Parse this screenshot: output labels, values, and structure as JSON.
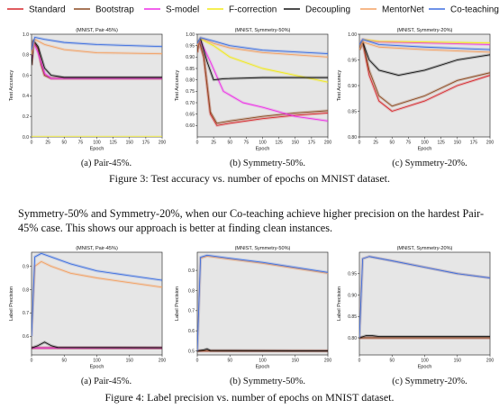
{
  "legend": [
    {
      "name": "Standard",
      "color": "#d6262b"
    },
    {
      "name": "Bootstrap",
      "color": "#8c4a22"
    },
    {
      "name": "S-model",
      "color": "#ee2ee6"
    },
    {
      "name": "F-correction",
      "color": "#f2ea1a"
    },
    {
      "name": "Decoupling",
      "color": "#111111"
    },
    {
      "name": "MentorNet",
      "color": "#f3a062"
    },
    {
      "name": "Co-teaching",
      "color": "#3d6fe0"
    }
  ],
  "figure3": {
    "caption": "Figure 3: Test accuracy vs. number of epochs on MNIST dataset.",
    "subcaptions": [
      "(a) Pair-45%.",
      "(b) Symmetry-50%.",
      "(c) Symmetry-20%."
    ]
  },
  "paragraph": "Symmetry-50% and Symmetry-20%, when our Co-teaching achieve higher precision on the hardest Pair-45% case. This shows our approach is better at finding clean instances.",
  "figure4": {
    "caption": "Figure 4: Label precision vs. number of epochs on MNIST dataset.",
    "subcaptions": [
      "(a) Pair-45%.",
      "(b) Symmetry-50%.",
      "(c) Symmetry-20%."
    ]
  },
  "chart_data": [
    {
      "type": "line",
      "title": "(MNIST, Pair-45%)",
      "xlabel": "Epoch",
      "ylabel": "Test Accuracy",
      "xlim": [
        0,
        200
      ],
      "ylim": [
        0.0,
        1.0
      ],
      "xticks": [
        0,
        25,
        50,
        75,
        100,
        125,
        150,
        175,
        200
      ],
      "yticks": [
        0.0,
        0.2,
        0.4,
        0.6,
        0.8,
        1.0
      ],
      "series": [
        {
          "name": "Standard",
          "x": [
            0,
            3,
            10,
            15,
            20,
            30,
            200
          ],
          "y": [
            0.7,
            0.93,
            0.86,
            0.7,
            0.6,
            0.57,
            0.57
          ]
        },
        {
          "name": "Bootstrap",
          "x": [
            0,
            3,
            10,
            15,
            20,
            30,
            200
          ],
          "y": [
            0.7,
            0.92,
            0.86,
            0.7,
            0.6,
            0.57,
            0.57
          ]
        },
        {
          "name": "S-model",
          "x": [
            0,
            3,
            10,
            20,
            30,
            200
          ],
          "y": [
            0.75,
            0.92,
            0.82,
            0.62,
            0.57,
            0.57
          ]
        },
        {
          "name": "F-correction",
          "x": [
            0,
            200
          ],
          "y": [
            0.0,
            0.0
          ]
        },
        {
          "name": "Decoupling",
          "x": [
            0,
            3,
            10,
            20,
            30,
            50,
            200
          ],
          "y": [
            0.7,
            0.94,
            0.88,
            0.67,
            0.6,
            0.58,
            0.58
          ]
        },
        {
          "name": "MentorNet",
          "x": [
            0,
            5,
            20,
            50,
            100,
            200
          ],
          "y": [
            0.8,
            0.95,
            0.9,
            0.85,
            0.82,
            0.81
          ]
        },
        {
          "name": "Co-teaching",
          "x": [
            0,
            5,
            20,
            50,
            100,
            200
          ],
          "y": [
            0.85,
            0.97,
            0.95,
            0.92,
            0.9,
            0.88
          ]
        }
      ]
    },
    {
      "type": "line",
      "title": "(MNIST, Symmetry-50%)",
      "xlabel": "Epoch",
      "ylabel": "Test Accuracy",
      "xlim": [
        0,
        200
      ],
      "ylim": [
        0.55,
        1.0
      ],
      "xticks": [
        0,
        25,
        50,
        75,
        100,
        125,
        150,
        175,
        200
      ],
      "yticks": [
        0.6,
        0.65,
        0.7,
        0.75,
        0.8,
        0.85,
        0.9,
        0.95,
        1.0
      ],
      "series": [
        {
          "name": "Standard",
          "x": [
            0,
            3,
            10,
            20,
            30,
            50,
            100,
            150,
            200
          ],
          "y": [
            0.92,
            0.97,
            0.9,
            0.65,
            0.6,
            0.61,
            0.63,
            0.645,
            0.655
          ]
        },
        {
          "name": "Bootstrap",
          "x": [
            0,
            3,
            10,
            20,
            30,
            50,
            100,
            150,
            200
          ],
          "y": [
            0.92,
            0.97,
            0.9,
            0.66,
            0.61,
            0.62,
            0.64,
            0.655,
            0.665
          ]
        },
        {
          "name": "S-model",
          "x": [
            0,
            5,
            20,
            40,
            70,
            100,
            150,
            200
          ],
          "y": [
            0.95,
            0.97,
            0.88,
            0.75,
            0.7,
            0.68,
            0.64,
            0.62
          ]
        },
        {
          "name": "F-correction",
          "x": [
            0,
            5,
            25,
            50,
            100,
            150,
            200
          ],
          "y": [
            0.95,
            0.98,
            0.95,
            0.9,
            0.85,
            0.82,
            0.79
          ]
        },
        {
          "name": "Decoupling",
          "x": [
            0,
            5,
            15,
            25,
            40,
            100,
            200
          ],
          "y": [
            0.95,
            0.98,
            0.88,
            0.8,
            0.805,
            0.81,
            0.81
          ]
        },
        {
          "name": "MentorNet",
          "x": [
            0,
            5,
            25,
            50,
            100,
            200
          ],
          "y": [
            0.95,
            0.985,
            0.96,
            0.94,
            0.92,
            0.9
          ]
        },
        {
          "name": "Co-teaching",
          "x": [
            0,
            5,
            25,
            50,
            100,
            200
          ],
          "y": [
            0.96,
            0.985,
            0.97,
            0.95,
            0.93,
            0.915
          ]
        }
      ]
    },
    {
      "type": "line",
      "title": "(MNIST, Symmetry-20%)",
      "xlabel": "Epoch",
      "ylabel": "Test Accuracy",
      "xlim": [
        0,
        200
      ],
      "ylim": [
        0.8,
        1.0
      ],
      "xticks": [
        0,
        25,
        50,
        75,
        100,
        125,
        150,
        175,
        200
      ],
      "yticks": [
        0.8,
        0.85,
        0.9,
        0.95,
        1.0
      ],
      "series": [
        {
          "name": "Standard",
          "x": [
            0,
            5,
            15,
            30,
            50,
            100,
            150,
            200
          ],
          "y": [
            0.97,
            0.985,
            0.92,
            0.87,
            0.85,
            0.87,
            0.9,
            0.92
          ]
        },
        {
          "name": "Bootstrap",
          "x": [
            0,
            5,
            15,
            30,
            50,
            100,
            150,
            200
          ],
          "y": [
            0.97,
            0.985,
            0.93,
            0.88,
            0.86,
            0.88,
            0.91,
            0.925
          ]
        },
        {
          "name": "S-model",
          "x": [
            0,
            5,
            30,
            100,
            200
          ],
          "y": [
            0.98,
            0.99,
            0.985,
            0.983,
            0.98
          ]
        },
        {
          "name": "F-correction",
          "x": [
            0,
            5,
            30,
            100,
            200
          ],
          "y": [
            0.98,
            0.99,
            0.986,
            0.985,
            0.983
          ]
        },
        {
          "name": "Decoupling",
          "x": [
            0,
            5,
            15,
            30,
            60,
            100,
            150,
            200
          ],
          "y": [
            0.97,
            0.985,
            0.95,
            0.93,
            0.92,
            0.93,
            0.95,
            0.96
          ]
        },
        {
          "name": "MentorNet",
          "x": [
            0,
            5,
            30,
            100,
            200
          ],
          "y": [
            0.97,
            0.985,
            0.975,
            0.97,
            0.965
          ]
        },
        {
          "name": "Co-teaching",
          "x": [
            0,
            5,
            30,
            100,
            200
          ],
          "y": [
            0.98,
            0.99,
            0.98,
            0.975,
            0.97
          ]
        }
      ]
    },
    {
      "type": "line",
      "title": "(MNIST, Pair-45%)",
      "xlabel": "Epoch",
      "ylabel": "Label Precision",
      "xlim": [
        0,
        200
      ],
      "ylim": [
        0.52,
        0.96
      ],
      "xticks": [
        0,
        50,
        100,
        150,
        200
      ],
      "yticks": [
        0.6,
        0.7,
        0.8,
        0.9
      ],
      "series": [
        {
          "name": "Standard",
          "x": [
            0,
            200
          ],
          "y": [
            0.55,
            0.55
          ]
        },
        {
          "name": "Bootstrap",
          "x": [
            0,
            200
          ],
          "y": [
            0.55,
            0.55
          ]
        },
        {
          "name": "S-model",
          "x": [
            0,
            200
          ],
          "y": [
            0.55,
            0.55
          ]
        },
        {
          "name": "Decoupling",
          "x": [
            0,
            10,
            20,
            30,
            40,
            200
          ],
          "y": [
            0.55,
            0.56,
            0.575,
            0.56,
            0.552,
            0.551
          ]
        },
        {
          "name": "MentorNet",
          "x": [
            0,
            5,
            15,
            30,
            60,
            100,
            150,
            200
          ],
          "y": [
            0.6,
            0.9,
            0.92,
            0.9,
            0.87,
            0.85,
            0.83,
            0.81
          ]
        },
        {
          "name": "Co-teaching",
          "x": [
            0,
            5,
            15,
            30,
            60,
            100,
            150,
            200
          ],
          "y": [
            0.6,
            0.94,
            0.955,
            0.94,
            0.91,
            0.88,
            0.86,
            0.84
          ]
        }
      ]
    },
    {
      "type": "line",
      "title": "(MNIST, Symmetry-50%)",
      "xlabel": "Epoch",
      "ylabel": "Label Precision",
      "xlim": [
        0,
        200
      ],
      "ylim": [
        0.48,
        0.99
      ],
      "xticks": [
        0,
        50,
        100,
        150,
        200
      ],
      "yticks": [
        0.5,
        0.6,
        0.7,
        0.8,
        0.9
      ],
      "series": [
        {
          "name": "Standard",
          "x": [
            0,
            200
          ],
          "y": [
            0.5,
            0.5
          ]
        },
        {
          "name": "Bootstrap",
          "x": [
            0,
            200
          ],
          "y": [
            0.5,
            0.5
          ]
        },
        {
          "name": "Decoupling",
          "x": [
            0,
            10,
            15,
            20,
            200
          ],
          "y": [
            0.5,
            0.505,
            0.51,
            0.502,
            0.5
          ]
        },
        {
          "name": "MentorNet",
          "x": [
            0,
            5,
            15,
            50,
            100,
            150,
            200
          ],
          "y": [
            0.5,
            0.96,
            0.97,
            0.955,
            0.935,
            0.91,
            0.885
          ]
        },
        {
          "name": "Co-teaching",
          "x": [
            0,
            5,
            15,
            50,
            100,
            150,
            200
          ],
          "y": [
            0.5,
            0.965,
            0.975,
            0.96,
            0.94,
            0.915,
            0.89
          ]
        }
      ]
    },
    {
      "type": "line",
      "title": "(MNIST, Symmetry-20%)",
      "xlabel": "Epoch",
      "ylabel": "Label Precision",
      "xlim": [
        0,
        200
      ],
      "ylim": [
        0.76,
        1.0
      ],
      "xticks": [
        0,
        50,
        100,
        150,
        200
      ],
      "yticks": [
        0.8,
        0.85,
        0.9,
        0.95
      ],
      "series": [
        {
          "name": "Standard",
          "x": [
            0,
            200
          ],
          "y": [
            0.8,
            0.8
          ]
        },
        {
          "name": "Bootstrap",
          "x": [
            0,
            200
          ],
          "y": [
            0.8,
            0.8
          ]
        },
        {
          "name": "Decoupling",
          "x": [
            0,
            10,
            20,
            30,
            200
          ],
          "y": [
            0.8,
            0.805,
            0.805,
            0.803,
            0.803
          ]
        },
        {
          "name": "MentorNet",
          "x": [
            0,
            5,
            15,
            50,
            100,
            150,
            200
          ],
          "y": [
            0.8,
            0.985,
            0.99,
            0.98,
            0.965,
            0.95,
            0.94
          ]
        },
        {
          "name": "Co-teaching",
          "x": [
            0,
            5,
            15,
            50,
            100,
            150,
            200
          ],
          "y": [
            0.8,
            0.985,
            0.99,
            0.98,
            0.965,
            0.95,
            0.94
          ]
        }
      ]
    }
  ]
}
